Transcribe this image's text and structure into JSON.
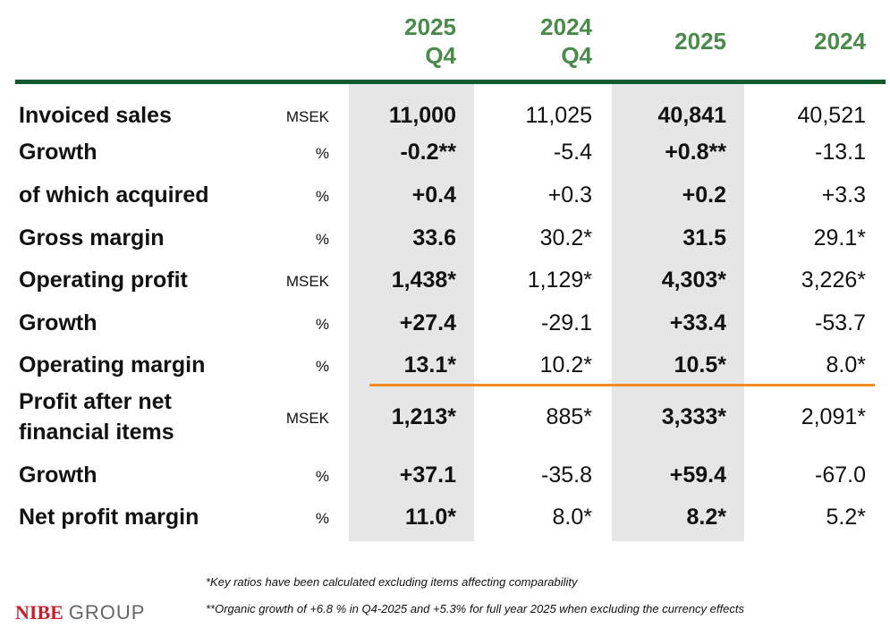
{
  "headers": [
    [
      "2025",
      "Q4"
    ],
    [
      "2024",
      "Q4"
    ],
    [
      "2025"
    ],
    [
      "2024"
    ]
  ],
  "rows": [
    {
      "label": "Invoiced sales",
      "unit": "MSEK",
      "values": [
        "11,000",
        "11,025",
        "40,841",
        "40,521"
      ]
    },
    {
      "label": "Growth",
      "unit": "%",
      "values": [
        "-0.2**",
        "-5.4",
        "+0.8**",
        "-13.1"
      ]
    },
    {
      "label": "of which acquired",
      "unit": "%",
      "values": [
        "+0.4",
        "+0.3",
        "+0.2",
        "+3.3"
      ]
    },
    {
      "label": "Gross margin",
      "unit": "%",
      "values": [
        "33.6",
        "30.2*",
        "31.5",
        "29.1*"
      ]
    },
    {
      "label": "Operating profit",
      "unit": "MSEK",
      "values": [
        "1,438*",
        "1,129*",
        "4,303*",
        "3,226*"
      ]
    },
    {
      "label": "Growth",
      "unit": "%",
      "values": [
        "+27.4",
        "-29.1",
        "+33.4",
        "-53.7"
      ]
    },
    {
      "label": "Operating margin",
      "unit": "%",
      "values": [
        "13.1*",
        "10.2*",
        "10.5*",
        "8.0*"
      ]
    },
    {
      "label": "Profit after net",
      "label2": "financial items",
      "unit": "MSEK",
      "values": [
        "1,213*",
        "885*",
        "3,333*",
        "2,091*"
      ]
    },
    {
      "label": "Growth",
      "unit": "%",
      "values": [
        "+37.1",
        "-35.8",
        "+59.4",
        "-67.0"
      ]
    },
    {
      "label": "Net profit margin",
      "unit": "%",
      "values": [
        "11.0*",
        "8.0*",
        "8.2*",
        "5.2*"
      ]
    }
  ],
  "notes": [
    "*Key ratios have been calculated excluding items affecting comparability",
    "**Organic growth of +6.8 % in Q4-2025 and +5.3% for full year 2025 when excluding the currency effects"
  ],
  "logo": {
    "brand": "NIBE",
    "suffix": "GROUP"
  },
  "colors": {
    "header": "#4a8a4a",
    "rule": "#0f5a2f",
    "divider": "#f08a24",
    "brand": "#c8202a"
  }
}
